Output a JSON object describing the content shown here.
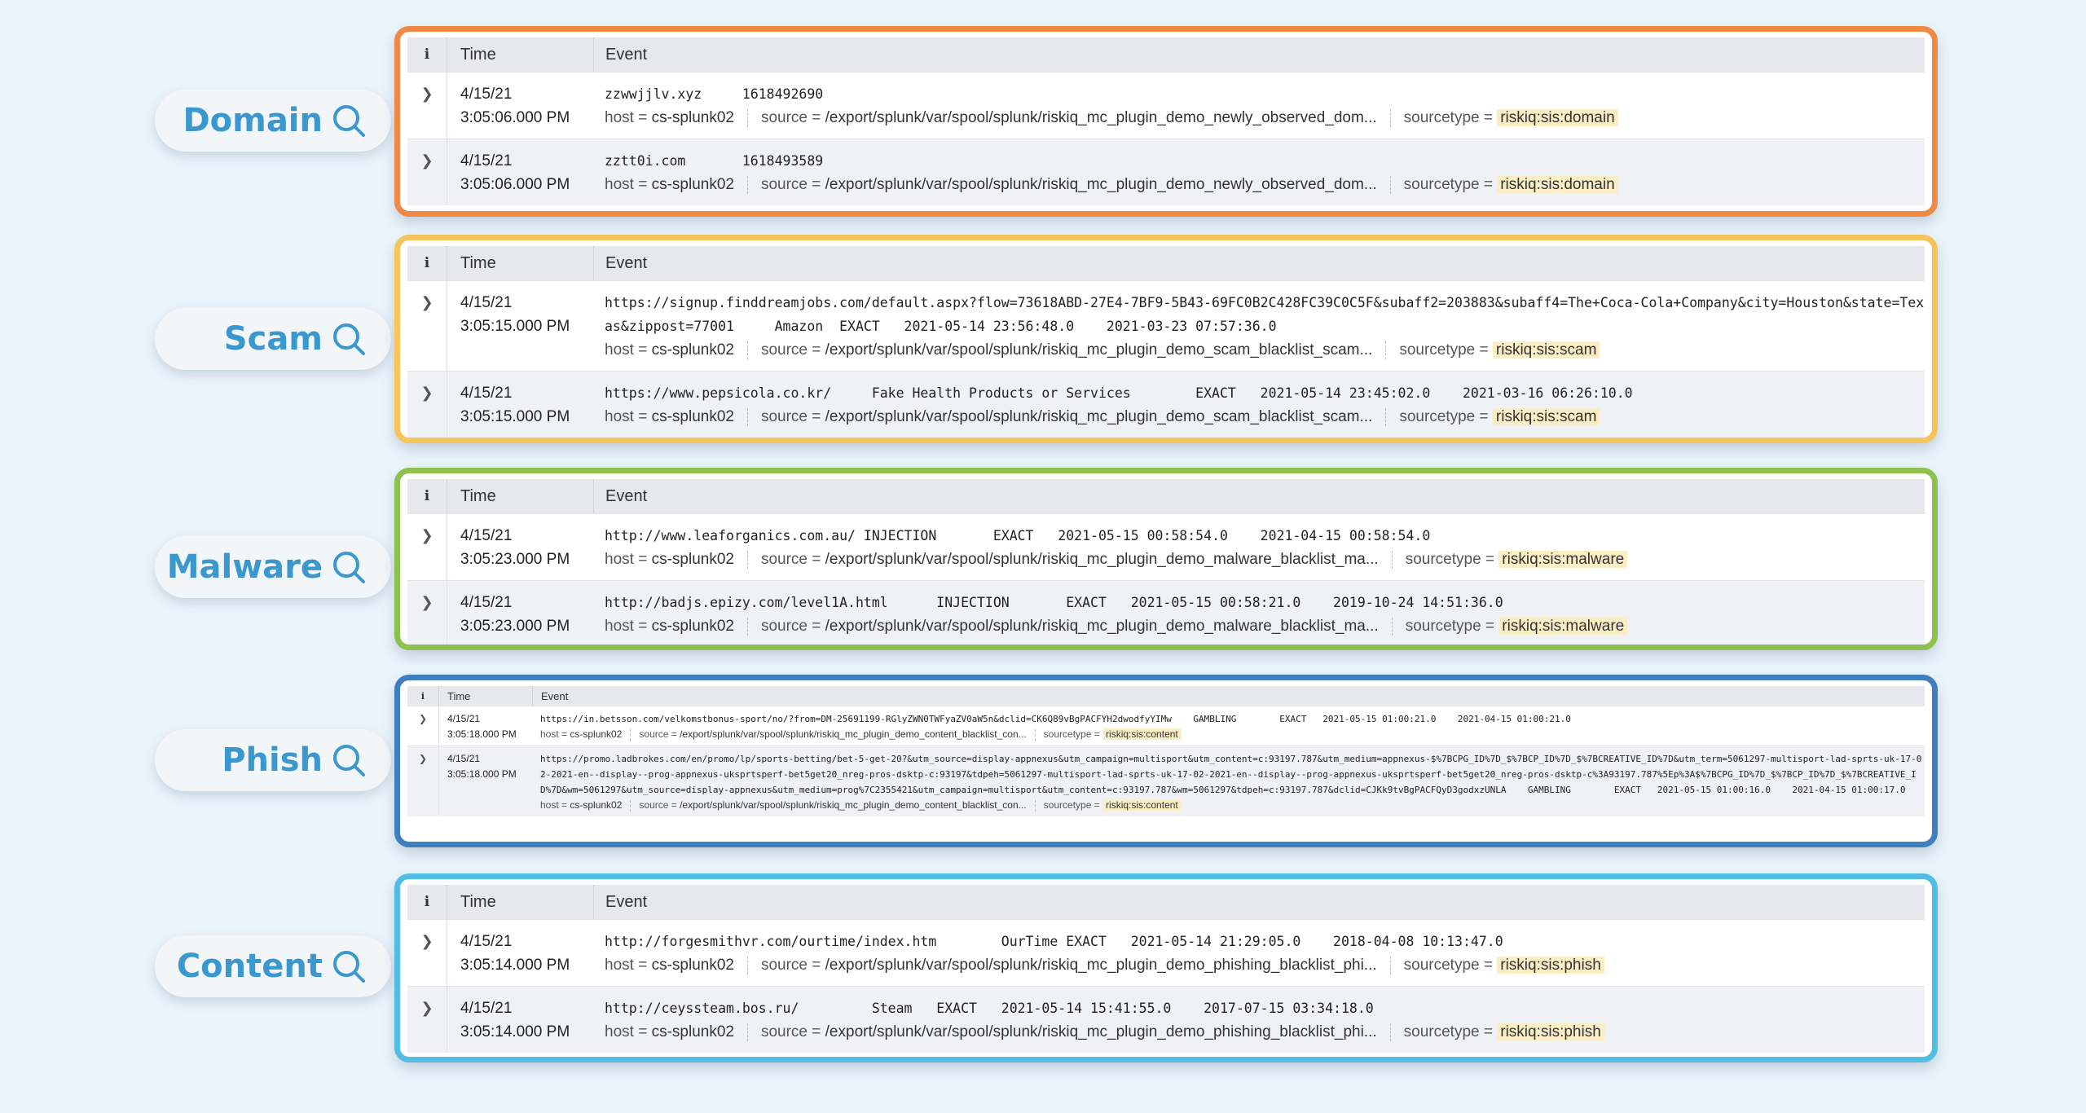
{
  "colors": {
    "domain": "#ee8a43",
    "scam": "#f5c45a",
    "malware": "#8cc150",
    "phish": "#3f7fbf",
    "content": "#52bde3",
    "label": "#3a98cf"
  },
  "icon": "search-icon",
  "headers": {
    "info": "i",
    "time": "Time",
    "event": "Event"
  },
  "meta_labels": {
    "host": "host = ",
    "source": "source = ",
    "sourcetype": "sourcetype = "
  },
  "panels": {
    "domain": {
      "label": "Domain",
      "rows": [
        {
          "date": "4/15/21",
          "time": "3:05:06.000 PM",
          "raw": "zzwwjjlv.xyz     1618492690",
          "host": "cs-splunk02",
          "source": "/export/splunk/var/spool/splunk/riskiq_mc_plugin_demo_newly_observed_dom...",
          "sourcetype": "riskiq:sis:domain"
        },
        {
          "date": "4/15/21",
          "time": "3:05:06.000 PM",
          "raw": "zztt0i.com       1618493589",
          "host": "cs-splunk02",
          "source": "/export/splunk/var/spool/splunk/riskiq_mc_plugin_demo_newly_observed_dom...",
          "sourcetype": "riskiq:sis:domain"
        }
      ]
    },
    "scam": {
      "label": "Scam",
      "rows": [
        {
          "date": "4/15/21",
          "time": "3:05:15.000 PM",
          "raw": "https://signup.finddreamjobs.com/default.aspx?flow=73618ABD-27E4-7BF9-5B43-69FC0B2C428FC39C0C5F&subaff2=203883&subaff4=The+Coca-Cola+Company&city=Houston&state=Texas&zippost=77001     Amazon  EXACT   2021-05-14 23:56:48.0    2021-03-23 07:57:36.0",
          "host": "cs-splunk02",
          "source": "/export/splunk/var/spool/splunk/riskiq_mc_plugin_demo_scam_blacklist_scam...",
          "sourcetype": "riskiq:sis:scam"
        },
        {
          "date": "4/15/21",
          "time": "3:05:15.000 PM",
          "raw": "https://www.pepsicola.co.kr/     Fake Health Products or Services        EXACT   2021-05-14 23:45:02.0    2021-03-16 06:26:10.0",
          "host": "cs-splunk02",
          "source": "/export/splunk/var/spool/splunk/riskiq_mc_plugin_demo_scam_blacklist_scam...",
          "sourcetype": "riskiq:sis:scam"
        }
      ]
    },
    "malware": {
      "label": "Malware",
      "rows": [
        {
          "date": "4/15/21",
          "time": "3:05:23.000 PM",
          "raw": "http://www.leaforganics.com.au/ INJECTION       EXACT   2021-05-15 00:58:54.0    2021-04-15 00:58:54.0",
          "host": "cs-splunk02",
          "source": "/export/splunk/var/spool/splunk/riskiq_mc_plugin_demo_malware_blacklist_ma...",
          "sourcetype": "riskiq:sis:malware"
        },
        {
          "date": "4/15/21",
          "time": "3:05:23.000 PM",
          "raw": "http://badjs.epizy.com/level1A.html      INJECTION       EXACT   2021-05-15 00:58:21.0    2019-10-24 14:51:36.0",
          "host": "cs-splunk02",
          "source": "/export/splunk/var/spool/splunk/riskiq_mc_plugin_demo_malware_blacklist_ma...",
          "sourcetype": "riskiq:sis:malware"
        }
      ]
    },
    "phish": {
      "label": "Phish",
      "rows": [
        {
          "date": "4/15/21",
          "time": "3:05:18.000 PM",
          "raw": "https://in.betsson.com/velkomstbonus-sport/no/?from=DM-25691199-RGlyZWN0TWFyaZV0aW5n&dclid=CK6Q89vBgPACFYH2dwodfyYIMw    GAMBLING        EXACT   2021-05-15 01:00:21.0    2021-04-15 01:00:21.0",
          "host": "cs-splunk02",
          "source": "/export/splunk/var/spool/splunk/riskiq_mc_plugin_demo_content_blacklist_con...",
          "sourcetype": "riskiq:sis:content"
        },
        {
          "date": "4/15/21",
          "time": "3:05:18.000 PM",
          "raw": "https://promo.ladbrokes.com/en/promo/lp/sports-betting/bet-5-get-20?&utm_source=display-appnexus&utm_campaign=multisport&utm_content=c:93197.787&utm_medium=appnexus-$%7BCPG_ID%7D_$%7BCP_ID%7D_$%7BCREATIVE_ID%7D&utm_term=5061297-multisport-lad-sprts-uk-17-02-2021-en--display--prog-appnexus-uksprtsperf-bet5get20_nreg-pros-dsktp-c:93197&tdpeh=5061297-multisport-lad-sprts-uk-17-02-2021-en--display--prog-appnexus-uksprtsperf-bet5get20_nreg-pros-dsktp-c%3A93197.787%5Ep%3A$%7BCPG_ID%7D_$%7BCP_ID%7D_$%7BCREATIVE_ID%7D&wm=5061297&utm_source=display-appnexus&utm_medium=prog%7C2355421&utm_campaign=multisport&utm_content=c:93197.787&wm=5061297&tdpeh=c:93197.787&dclid=CJKk9tvBgPACFQyD3godxzUNLA    GAMBLING        EXACT   2021-05-15 01:00:16.0    2021-04-15 01:00:17.0",
          "host": "cs-splunk02",
          "source": "/export/splunk/var/spool/splunk/riskiq_mc_plugin_demo_content_blacklist_con...",
          "sourcetype": "riskiq:sis:content"
        }
      ]
    },
    "content": {
      "label": "Content",
      "rows": [
        {
          "date": "4/15/21",
          "time": "3:05:14.000 PM",
          "raw": "http://forgesmithvr.com/ourtime/index.htm        OurTime EXACT   2021-05-14 21:29:05.0    2018-04-08 10:13:47.0",
          "host": "cs-splunk02",
          "source": "/export/splunk/var/spool/splunk/riskiq_mc_plugin_demo_phishing_blacklist_phi...",
          "sourcetype": "riskiq:sis:phish"
        },
        {
          "date": "4/15/21",
          "time": "3:05:14.000 PM",
          "raw": "http://ceyssteam.bos.ru/         Steam   EXACT   2021-05-14 15:41:55.0    2017-07-15 03:34:18.0",
          "host": "cs-splunk02",
          "source": "/export/splunk/var/spool/splunk/riskiq_mc_plugin_demo_phishing_blacklist_phi...",
          "sourcetype": "riskiq:sis:phish"
        }
      ]
    }
  }
}
